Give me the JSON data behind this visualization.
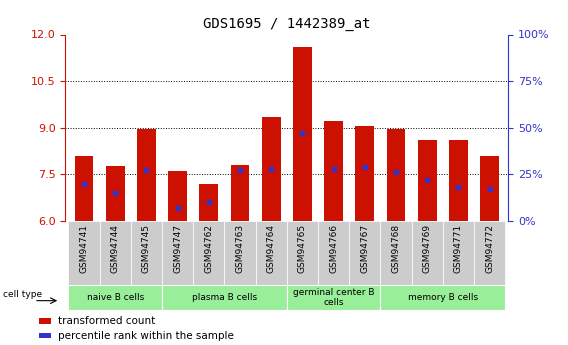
{
  "title": "GDS1695 / 1442389_at",
  "samples": [
    "GSM94741",
    "GSM94744",
    "GSM94745",
    "GSM94747",
    "GSM94762",
    "GSM94763",
    "GSM94764",
    "GSM94765",
    "GSM94766",
    "GSM94767",
    "GSM94768",
    "GSM94769",
    "GSM94771",
    "GSM94772"
  ],
  "transformed_counts": [
    8.1,
    7.78,
    8.97,
    7.6,
    7.2,
    7.8,
    9.35,
    11.6,
    9.2,
    9.05,
    8.97,
    8.6,
    8.6,
    8.1
  ],
  "percentile_ranks": [
    20,
    15,
    27,
    7,
    10,
    27,
    28,
    47,
    28,
    29,
    26,
    22,
    18,
    17
  ],
  "ylim_left": [
    6,
    12
  ],
  "ylim_right": [
    0,
    100
  ],
  "yticks_left": [
    6,
    7.5,
    9,
    10.5,
    12
  ],
  "yticks_right": [
    0,
    25,
    50,
    75,
    100
  ],
  "bar_color": "#cc1100",
  "dot_color": "#3333cc",
  "background_color": "#ffffff",
  "cell_type_groups": [
    {
      "label": "naive B cells",
      "start": 0,
      "end": 3
    },
    {
      "label": "plasma B cells",
      "start": 3,
      "end": 7
    },
    {
      "label": "germinal center B\ncells",
      "start": 7,
      "end": 10
    },
    {
      "label": "memory B cells",
      "start": 10,
      "end": 14
    }
  ],
  "cell_type_color": "#99ee99",
  "sample_box_color": "#cccccc",
  "left_axis_color": "#cc1100",
  "right_axis_color": "#3333cc",
  "grid_yticks": [
    7.5,
    9.0,
    10.5
  ]
}
